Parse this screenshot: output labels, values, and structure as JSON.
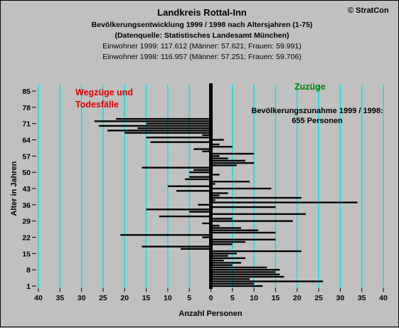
{
  "copyright": "© StratCon",
  "header": {
    "title": "Landkreis Rottal-Inn",
    "subtitle": "Bevölkerungsentwicklung 1999 / 1998  nach Altersjahren (1-75)",
    "source": "(Datenquelle: Statistisches Landesamt München)",
    "info_1999": "Einwohner 1999: 117.612  (Männer: 57.621; Frauen: 59.991)",
    "info_1998": "Einwohner 1998: 116.957  (Männer: 57.251; Frauen: 59.706)"
  },
  "chart_data": {
    "type": "bar",
    "orientation": "horizontal",
    "xlabel": "Anzahl Personen",
    "ylabel": "Alter in Jahren",
    "xlim": [
      -40,
      40
    ],
    "ylim": [
      1,
      85
    ],
    "x_ticks": [
      -40,
      -35,
      -30,
      -25,
      -20,
      -15,
      -10,
      -5,
      0,
      5,
      10,
      15,
      20,
      25,
      30,
      35,
      40
    ],
    "x_tick_labels": [
      "40",
      "35",
      "30",
      "25",
      "20",
      "15",
      "10",
      "5",
      "0",
      "5",
      "10",
      "15",
      "20",
      "25",
      "30",
      "35",
      "40"
    ],
    "y_ticks": [
      1,
      8,
      15,
      22,
      29,
      36,
      43,
      50,
      57,
      64,
      71,
      78,
      85
    ],
    "grid": "vertical",
    "colors": {
      "bars": "#000000",
      "grid": "#00e5e5",
      "zero_line": "#000000",
      "label_left": "#e00000",
      "label_right": "#008000"
    },
    "annotations": {
      "left_line1": "Wegzüge und",
      "left_line2": "Todesfälle",
      "right": "Zuzüge",
      "summary_line1": "Bevölkerungszunahme 1999 / 1998:",
      "summary_line2": "655 Personen"
    },
    "ages": [
      1,
      2,
      3,
      4,
      5,
      6,
      7,
      8,
      9,
      10,
      11,
      12,
      13,
      14,
      15,
      16,
      17,
      18,
      19,
      20,
      21,
      22,
      23,
      24,
      25,
      26,
      27,
      28,
      29,
      30,
      31,
      32,
      33,
      34,
      35,
      36,
      37,
      38,
      39,
      40,
      41,
      42,
      43,
      44,
      45,
      46,
      47,
      48,
      49,
      50,
      51,
      52,
      53,
      54,
      55,
      56,
      57,
      58,
      59,
      60,
      61,
      62,
      63,
      64,
      65,
      66,
      67,
      68,
      69,
      70,
      71,
      72,
      73
    ],
    "values": [
      12,
      10,
      26,
      9,
      17,
      16,
      15,
      16,
      13,
      5,
      7,
      3,
      8,
      4,
      6,
      21,
      -7,
      -16,
      5,
      8,
      15,
      -2,
      -21,
      15,
      11,
      7,
      2,
      -2,
      19,
      5,
      -12,
      22,
      -5,
      -15,
      15,
      -3,
      34,
      1,
      21,
      2,
      4,
      -8,
      14,
      -10,
      1,
      9,
      -6,
      -5,
      2,
      -5,
      -4,
      -16,
      6,
      10,
      8,
      4,
      2,
      10,
      -2,
      -4,
      5,
      2,
      -14,
      3,
      -15,
      -2,
      -20,
      -24,
      -17,
      -26,
      -15,
      -27,
      -22
    ]
  }
}
